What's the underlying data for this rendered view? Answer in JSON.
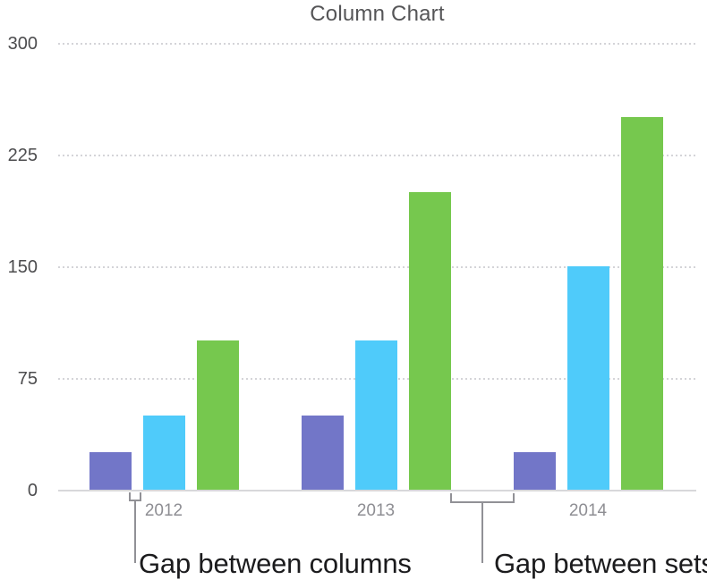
{
  "chart_data": {
    "type": "bar",
    "title": "Column Chart",
    "categories": [
      "2012",
      "2013",
      "2014"
    ],
    "series": [
      {
        "name": "purple-series",
        "color": "#7276c8",
        "values": [
          25,
          50,
          25
        ]
      },
      {
        "name": "blue-series",
        "color": "#4fcbfa",
        "values": [
          50,
          100,
          150
        ]
      },
      {
        "name": "green-series",
        "color": "#76c84e",
        "values": [
          100,
          200,
          250
        ]
      }
    ],
    "xlabel": "",
    "ylabel": "",
    "ylim": [
      0,
      300
    ],
    "yticks": [
      0,
      75,
      150,
      225,
      300
    ],
    "grid": "horizontal-dotted",
    "legend": "none"
  },
  "annotations": {
    "gap_between_columns": {
      "label": "Gap between columns"
    },
    "gap_between_sets": {
      "label": "Gap between sets"
    }
  },
  "colors": {
    "title_text": "#555557",
    "ytick_text": "#4c4c4e",
    "xtick_text": "#8e8e93",
    "gridline": "#d4d4d8",
    "axis_line": "#d8d8da",
    "bracket": "#919196",
    "annotation_text": "#1b1b1d",
    "background": "#ffffff"
  }
}
